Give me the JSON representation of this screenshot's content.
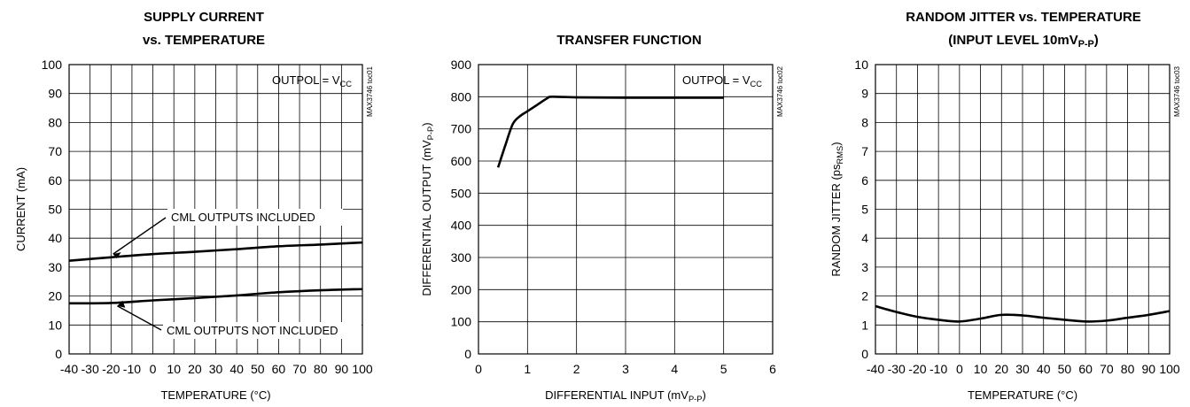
{
  "chart_data": [
    {
      "id": "supply-current",
      "type": "line",
      "title": [
        "SUPPLY CURRENT",
        "vs. TEMPERATURE"
      ],
      "xlabel": "TEMPERATURE (°C)",
      "ylabel": "CURRENT (mA)",
      "xlim": [
        -40,
        100
      ],
      "ylim": [
        0,
        100
      ],
      "xticks": [
        -40,
        -30,
        -20,
        -10,
        0,
        10,
        20,
        30,
        40,
        50,
        60,
        70,
        80,
        90,
        100
      ],
      "yticks": [
        0,
        10,
        20,
        30,
        40,
        50,
        60,
        70,
        80,
        90,
        100
      ],
      "grid": true,
      "annotation": {
        "base": "OUTPOL = V",
        "sub": "CC"
      },
      "side_label": "MAX3746 toc01",
      "series": [
        {
          "x": [
            -40,
            -20,
            0,
            20,
            40,
            60,
            80,
            100
          ],
          "y": [
            32.2,
            33.4,
            34.5,
            35.3,
            36.2,
            37.2,
            37.8,
            38.5
          ]
        },
        {
          "x": [
            -40,
            -20,
            0,
            20,
            40,
            60,
            80,
            100
          ],
          "y": [
            17.5,
            17.6,
            18.5,
            19.3,
            20.2,
            21.3,
            22.0,
            22.4
          ]
        }
      ],
      "callouts": [
        {
          "text": "CML OUTPUTS INCLUDED"
        },
        {
          "text": "CML OUTPUTS NOT INCLUDED"
        }
      ]
    },
    {
      "id": "transfer-function",
      "type": "line",
      "title": [
        "TRANSFER FUNCTION"
      ],
      "xlabel": {
        "base": "DIFFERENTIAL INPUT (mV",
        "sub": "P-P",
        "tail": ")"
      },
      "ylabel": {
        "base": "DIFFERENTIAL OUTPUT (mV",
        "sub": "P-P",
        "tail": ")"
      },
      "xlim": [
        0,
        6
      ],
      "ylim": [
        0,
        900
      ],
      "xticks": [
        0,
        1,
        2,
        3,
        4,
        5,
        6
      ],
      "yticks": [
        0,
        100,
        200,
        300,
        400,
        500,
        600,
        700,
        800,
        900
      ],
      "grid": true,
      "annotation": {
        "base": "OUTPOL = V",
        "sub": "CC"
      },
      "side_label": "MAX3746 toc02",
      "series": [
        {
          "x": [
            0.4,
            0.55,
            0.7,
            0.85,
            1.0,
            1.2,
            1.4,
            1.5,
            2.0,
            3.0,
            4.0,
            5.0
          ],
          "y": [
            580,
            650,
            715,
            740,
            755,
            775,
            795,
            800,
            798,
            797,
            797,
            797
          ]
        }
      ]
    },
    {
      "id": "random-jitter",
      "type": "line",
      "title": [
        "RANDOM JITTER vs. TEMPERATURE",
        {
          "base": "(INPUT LEVEL 10mV",
          "sub": "P-P",
          "tail": ")"
        }
      ],
      "xlabel": "TEMPERATURE (°C)",
      "ylabel": {
        "base": "RANDOM JITTER (ps",
        "sub": "RMS",
        "tail": ")"
      },
      "xlim": [
        -40,
        100
      ],
      "ylim": [
        0,
        10
      ],
      "xticks": [
        -40,
        -30,
        -20,
        -10,
        0,
        10,
        20,
        30,
        40,
        50,
        60,
        70,
        80,
        90,
        100
      ],
      "yticks": [
        0,
        1,
        2,
        3,
        4,
        5,
        6,
        7,
        8,
        9,
        10
      ],
      "grid": true,
      "side_label": "MAX3746 toc03",
      "series": [
        {
          "x": [
            -40,
            -30,
            -20,
            -10,
            0,
            10,
            20,
            30,
            40,
            50,
            60,
            70,
            80,
            90,
            100
          ],
          "y": [
            1.65,
            1.45,
            1.28,
            1.18,
            1.12,
            1.22,
            1.35,
            1.33,
            1.25,
            1.18,
            1.12,
            1.15,
            1.25,
            1.35,
            1.48
          ]
        }
      ]
    }
  ]
}
